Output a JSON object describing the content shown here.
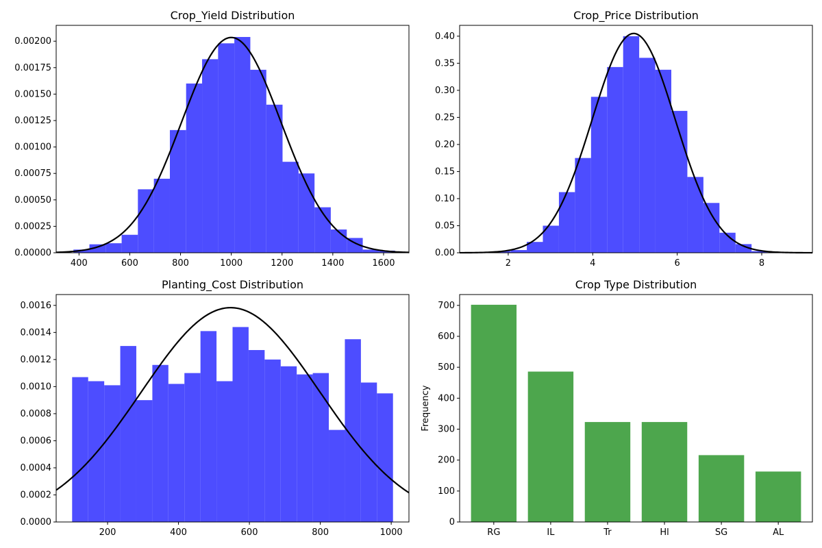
{
  "chart_data": [
    {
      "type": "histogram",
      "title": "Crop_Yield Distribution",
      "xlabel": "",
      "ylabel": "",
      "xlim": [
        310,
        1700
      ],
      "ylim": [
        0,
        0.00215
      ],
      "xticks": [
        400,
        600,
        800,
        1000,
        1200,
        1400,
        1600
      ],
      "yticks": [
        0,
        0.00025,
        0.0005,
        0.00075,
        0.001,
        0.00125,
        0.0015,
        0.00175,
        0.002
      ],
      "ytick_decimals": 5,
      "bin_edges": [
        378,
        441,
        505,
        568,
        632,
        695,
        758,
        822,
        885,
        948,
        1012,
        1075,
        1138,
        1202,
        1265,
        1328,
        1392,
        1455,
        1518,
        1582,
        1645
      ],
      "density": [
        3e-05,
        8e-05,
        9e-05,
        0.00017,
        0.0006,
        0.0007,
        0.00116,
        0.0016,
        0.00183,
        0.00198,
        0.00204,
        0.00173,
        0.0014,
        0.00086,
        0.00075,
        0.00043,
        0.00022,
        0.00014,
        3e-05,
        2e-05
      ],
      "bar_color": "#4d4dff",
      "normal_fit": {
        "mean": 1000,
        "std": 196,
        "x_range": [
          310,
          1700
        ],
        "color": "#000000"
      },
      "grid": false
    },
    {
      "type": "histogram",
      "title": "Crop_Price Distribution",
      "xlabel": "",
      "ylabel": "",
      "xlim": [
        0.85,
        9.2
      ],
      "ylim": [
        0,
        0.42
      ],
      "xticks": [
        2,
        4,
        6,
        8
      ],
      "yticks": [
        0,
        0.05,
        0.1,
        0.15,
        0.2,
        0.25,
        0.3,
        0.35,
        0.4
      ],
      "ytick_decimals": 2,
      "bin_edges": [
        1.3,
        1.68,
        2.06,
        2.44,
        2.82,
        3.2,
        3.58,
        3.96,
        4.34,
        4.72,
        5.1,
        5.48,
        5.86,
        6.24,
        6.62,
        7.0,
        7.38,
        7.76,
        8.14,
        8.52,
        8.9
      ],
      "density": [
        0.0,
        0.003,
        0.005,
        0.02,
        0.05,
        0.112,
        0.175,
        0.288,
        0.343,
        0.4,
        0.36,
        0.338,
        0.262,
        0.14,
        0.092,
        0.037,
        0.016,
        0.003,
        0.0,
        0.0
      ],
      "bar_color": "#4d4dff",
      "normal_fit": {
        "mean": 4.97,
        "std": 0.985,
        "x_range": [
          0.85,
          9.2
        ],
        "color": "#000000"
      },
      "grid": false
    },
    {
      "type": "histogram",
      "title": "Planting_Cost Distribution",
      "xlabel": "",
      "ylabel": "",
      "xlim": [
        55,
        1050
      ],
      "ylim": [
        0,
        0.00168
      ],
      "xticks": [
        200,
        400,
        600,
        800,
        1000
      ],
      "yticks": [
        0,
        0.0002,
        0.0004,
        0.0006,
        0.0008,
        0.001,
        0.0012,
        0.0014,
        0.0016
      ],
      "ytick_decimals": 4,
      "bin_edges": [
        100,
        145.25,
        190.5,
        235.75,
        281,
        326.25,
        371.5,
        416.75,
        462,
        507.25,
        552.5,
        597.75,
        643,
        688.25,
        733.5,
        778.75,
        824,
        869.25,
        914.5,
        959.75,
        1005
      ],
      "density": [
        0.00107,
        0.00104,
        0.00101,
        0.0013,
        0.0009,
        0.00116,
        0.00102,
        0.0011,
        0.00141,
        0.00104,
        0.00144,
        0.00127,
        0.0012,
        0.00115,
        0.00109,
        0.0011,
        0.00068,
        0.00135,
        0.00103,
        0.00095
      ],
      "bar_color": "#4d4dff",
      "normal_fit": {
        "mean": 547,
        "std": 252,
        "x_range": [
          55,
          1050
        ],
        "color": "#000000"
      },
      "grid": false
    },
    {
      "type": "bar",
      "title": "Crop Type Distribution",
      "xlabel": "",
      "ylabel": "Frequency",
      "categories": [
        "RG",
        "IL",
        "Tr",
        "Hl",
        "SG",
        "AL"
      ],
      "values": [
        702,
        486,
        323,
        323,
        216,
        163
      ],
      "ylim": [
        0,
        735
      ],
      "yticks": [
        0,
        100,
        200,
        300,
        400,
        500,
        600,
        700
      ],
      "ytick_decimals": 0,
      "bar_color": "#4da64d",
      "grid": false
    }
  ]
}
